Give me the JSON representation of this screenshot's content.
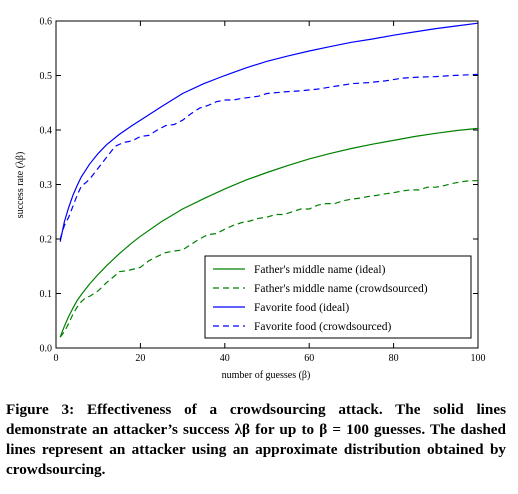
{
  "chart_data": {
    "type": "line",
    "xlabel": "number of guesses (β)",
    "ylabel": "success rate (λβ)",
    "xlim": [
      0,
      100
    ],
    "ylim": [
      0,
      0.6
    ],
    "x_ticks": [
      0,
      20,
      40,
      60,
      80,
      100
    ],
    "y_ticks": [
      0.0,
      0.1,
      0.2,
      0.3,
      0.4,
      0.5,
      0.6
    ],
    "legend_position": "lower-right",
    "series": [
      {
        "name": "Father's middle name (ideal)",
        "color": "#008000",
        "style": "solid",
        "x": [
          1,
          2,
          3,
          4,
          5,
          6,
          8,
          10,
          12,
          15,
          18,
          20,
          25,
          30,
          35,
          40,
          45,
          50,
          55,
          60,
          65,
          70,
          75,
          80,
          85,
          90,
          95,
          100
        ],
        "y": [
          0.02,
          0.04,
          0.058,
          0.073,
          0.087,
          0.098,
          0.118,
          0.135,
          0.151,
          0.173,
          0.193,
          0.205,
          0.232,
          0.255,
          0.274,
          0.292,
          0.308,
          0.322,
          0.335,
          0.347,
          0.357,
          0.366,
          0.374,
          0.381,
          0.388,
          0.394,
          0.399,
          0.403
        ]
      },
      {
        "name": "Father's middle name (crowdsourced)",
        "color": "#008000",
        "style": "dashed",
        "x": [
          1,
          2,
          3,
          4,
          5,
          6,
          7,
          8,
          10,
          12,
          14,
          15,
          17,
          20,
          22,
          24,
          26,
          28,
          30,
          32,
          34,
          36,
          38,
          40,
          42,
          44,
          46,
          48,
          50,
          52,
          54,
          56,
          58,
          60,
          62,
          64,
          66,
          68,
          70,
          72,
          74,
          76,
          78,
          80,
          82,
          84,
          86,
          88,
          90,
          92,
          94,
          96,
          98,
          100
        ],
        "y": [
          0.02,
          0.03,
          0.045,
          0.062,
          0.075,
          0.085,
          0.092,
          0.095,
          0.105,
          0.12,
          0.133,
          0.14,
          0.142,
          0.148,
          0.16,
          0.168,
          0.175,
          0.178,
          0.18,
          0.19,
          0.2,
          0.208,
          0.21,
          0.218,
          0.225,
          0.23,
          0.233,
          0.238,
          0.24,
          0.245,
          0.245,
          0.25,
          0.255,
          0.255,
          0.262,
          0.265,
          0.265,
          0.27,
          0.273,
          0.275,
          0.278,
          0.28,
          0.283,
          0.285,
          0.288,
          0.29,
          0.29,
          0.295,
          0.295,
          0.298,
          0.302,
          0.305,
          0.307,
          0.307
        ]
      },
      {
        "name": "Favorite food (ideal)",
        "color": "#0000ff",
        "style": "solid",
        "x": [
          1,
          2,
          3,
          4,
          5,
          6,
          8,
          10,
          12,
          15,
          18,
          20,
          25,
          30,
          35,
          40,
          45,
          50,
          55,
          60,
          65,
          70,
          75,
          80,
          85,
          90,
          95,
          100
        ],
        "y": [
          0.195,
          0.232,
          0.258,
          0.28,
          0.298,
          0.314,
          0.338,
          0.357,
          0.373,
          0.392,
          0.408,
          0.418,
          0.443,
          0.467,
          0.485,
          0.5,
          0.514,
          0.526,
          0.536,
          0.545,
          0.553,
          0.561,
          0.567,
          0.574,
          0.58,
          0.586,
          0.591,
          0.596
        ]
      },
      {
        "name": "Favorite food (crowdsourced)",
        "color": "#0000ff",
        "style": "dashed",
        "x": [
          1,
          2,
          3,
          4,
          5,
          6,
          7,
          8,
          10,
          12,
          13,
          14,
          16,
          18,
          20,
          22,
          24,
          26,
          28,
          30,
          32,
          34,
          36,
          38,
          40,
          42,
          44,
          46,
          48,
          50,
          54,
          58,
          62,
          66,
          70,
          74,
          78,
          82,
          86,
          90,
          94,
          100
        ],
        "y": [
          0.2,
          0.225,
          0.24,
          0.26,
          0.28,
          0.297,
          0.303,
          0.31,
          0.33,
          0.35,
          0.36,
          0.37,
          0.377,
          0.38,
          0.388,
          0.39,
          0.4,
          0.408,
          0.41,
          0.418,
          0.43,
          0.44,
          0.445,
          0.452,
          0.455,
          0.455,
          0.458,
          0.46,
          0.462,
          0.467,
          0.47,
          0.472,
          0.475,
          0.48,
          0.485,
          0.487,
          0.49,
          0.495,
          0.497,
          0.498,
          0.5,
          0.502
        ]
      }
    ]
  },
  "caption": {
    "text": "Figure 3: Effectiveness of a crowdsourcing attack. The solid lines demonstrate an attacker’s success λβ for up to β = 100 guesses. The dashed lines represent an attacker using an approximate distribution obtained by crowdsourcing."
  }
}
